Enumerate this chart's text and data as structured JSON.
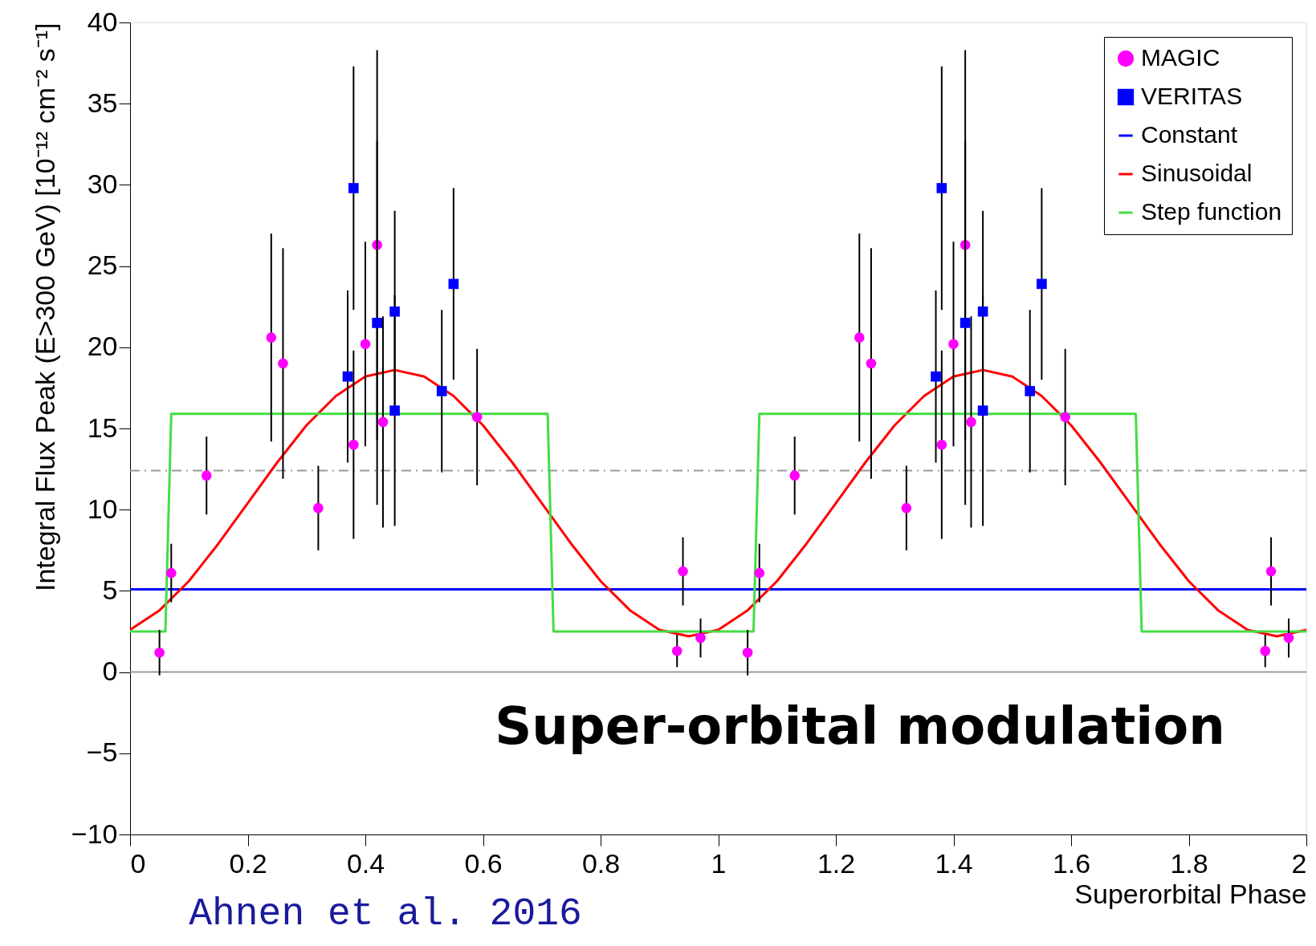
{
  "chart_data": {
    "type": "scatter",
    "xlabel": "Superorbital Phase",
    "ylabel": "Integral Flux Peak (E>300 GeV) [10⁻¹² cm⁻² s⁻¹]",
    "xlim": [
      0,
      2
    ],
    "ylim": [
      -10,
      40
    ],
    "xticks": [
      0,
      0.2,
      0.4,
      0.6,
      0.8,
      1,
      1.2,
      1.4,
      1.6,
      1.8,
      2
    ],
    "yticks": [
      {
        "value": -10,
        "label": "−10"
      },
      {
        "value": -5,
        "label": "−5"
      },
      0,
      5,
      10,
      15,
      20,
      25,
      30,
      35,
      40
    ],
    "legend": "top right",
    "grid": false,
    "series": [
      {
        "name": "MAGIC",
        "type": "scatter",
        "marker": "circle",
        "color": "#ff00ff",
        "x": [
          0.05,
          0.07,
          0.13,
          0.24,
          0.26,
          0.32,
          0.38,
          0.4,
          0.42,
          0.43,
          0.59,
          0.93,
          0.94,
          0.97,
          1.05,
          1.07,
          1.13,
          1.24,
          1.26,
          1.32,
          1.38,
          1.4,
          1.42,
          1.43,
          1.59,
          1.93,
          1.94,
          1.97
        ],
        "values": [
          1.2,
          6.1,
          12.1,
          20.6,
          19.0,
          10.1,
          14.0,
          20.2,
          26.3,
          15.4,
          15.7,
          1.3,
          6.2,
          2.1,
          1.2,
          6.1,
          12.1,
          20.6,
          19.0,
          10.1,
          14.0,
          20.2,
          26.3,
          15.4,
          15.7,
          1.3,
          6.2,
          2.1
        ],
        "errors": [
          1.4,
          1.8,
          2.4,
          6.4,
          7.1,
          2.6,
          5.8,
          6.3,
          12,
          6.5,
          4.2,
          1.0,
          2.1,
          1.2,
          1.4,
          1.8,
          2.4,
          6.4,
          7.1,
          2.6,
          5.8,
          6.3,
          12,
          6.5,
          4.2,
          1.0,
          2.1,
          1.2
        ]
      },
      {
        "name": "VERITAS",
        "type": "scatter",
        "marker": "square",
        "color": "#0000ff",
        "x": [
          0.37,
          0.38,
          0.42,
          0.45,
          0.45,
          0.53,
          0.55,
          1.37,
          1.38,
          1.42,
          1.45,
          1.45,
          1.53,
          1.55
        ],
        "values": [
          18.2,
          29.8,
          21.5,
          22.2,
          16.1,
          17.3,
          23.9,
          18.2,
          29.8,
          21.5,
          22.2,
          16.1,
          17.3,
          23.9
        ],
        "errors": [
          5.3,
          7.5,
          11.2,
          6.2,
          7.1,
          5.0,
          5.9,
          5.3,
          7.5,
          11.2,
          6.2,
          7.1,
          5.0,
          5.9
        ]
      },
      {
        "name": "Constant",
        "type": "line",
        "marker": "none",
        "line_style": "solid",
        "color": "#0000ff",
        "x": [
          0,
          2
        ],
        "values": [
          5.1,
          5.1
        ]
      },
      {
        "name": "Sinusoidal",
        "type": "line",
        "marker": "none",
        "line_style": "solid",
        "color": "#ff0000",
        "x": [
          0,
          0.05,
          0.1,
          0.15,
          0.2,
          0.25,
          0.3,
          0.35,
          0.4,
          0.45,
          0.5,
          0.55,
          0.6,
          0.65,
          0.7,
          0.75,
          0.8,
          0.85,
          0.9,
          0.95,
          1,
          1.05,
          1.1,
          1.15,
          1.2,
          1.25,
          1.3,
          1.35,
          1.4,
          1.45,
          1.5,
          1.55,
          1.6,
          1.65,
          1.7,
          1.75,
          1.8,
          1.85,
          1.9,
          1.95,
          2
        ],
        "values": [
          2.6,
          3.8,
          5.6,
          7.9,
          10.4,
          12.9,
          15.2,
          17.0,
          18.2,
          18.6,
          18.2,
          17.0,
          15.2,
          12.9,
          10.4,
          7.9,
          5.6,
          3.8,
          2.6,
          2.2,
          2.6,
          3.8,
          5.6,
          7.9,
          10.4,
          12.9,
          15.2,
          17.0,
          18.2,
          18.6,
          18.2,
          17.0,
          15.2,
          12.9,
          10.4,
          7.9,
          5.6,
          3.8,
          2.6,
          2.2,
          2.6
        ]
      },
      {
        "name": "Step function",
        "type": "line",
        "marker": "none",
        "line_style": "solid",
        "color": "#44dd44",
        "x": [
          0,
          0.06,
          0.07,
          0.71,
          0.72,
          1.06,
          1.07,
          1.71,
          1.72,
          2
        ],
        "values": [
          2.5,
          2.5,
          15.9,
          15.9,
          2.5,
          2.5,
          15.9,
          15.9,
          2.5,
          2.5
        ]
      }
    ],
    "ref_lines": [
      {
        "axis": "y",
        "value": 0,
        "color": "#999999",
        "line_style": "solid"
      },
      {
        "axis": "y",
        "value": 12.4,
        "color": "#999999",
        "line_style": "dashed"
      }
    ],
    "annotations": [
      "Super-orbital modulation",
      "Ahnen et al. 2016"
    ]
  }
}
